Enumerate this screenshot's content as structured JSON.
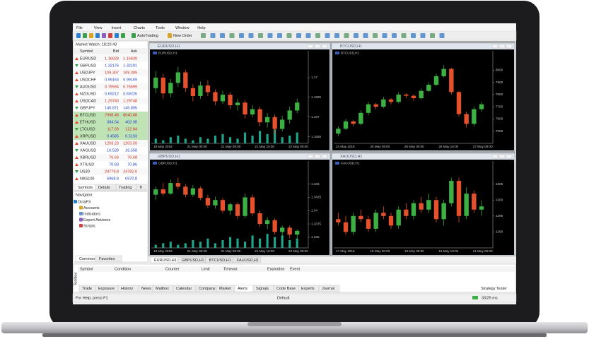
{
  "menu": [
    "File",
    "View",
    "Insert",
    "Charts",
    "Tools",
    "Window",
    "Help"
  ],
  "toolbar": {
    "autotrading": "AutoTrading",
    "new_order": "New Order"
  },
  "market_watch": {
    "title": "Market Watch: 18:20:43",
    "columns": [
      "Symbol",
      "Bid",
      "Ask"
    ],
    "rows": [
      [
        "EURUSD",
        "1.16628",
        "1.16639"
      ],
      [
        "GBPUSD",
        "1.32176",
        "1.32191"
      ],
      [
        "USDJPY",
        "109.307",
        "109.309"
      ],
      [
        "USDCHF",
        "0.99163",
        "0.99169"
      ],
      [
        "AUDUSD",
        "0.75594",
        "0.75599"
      ],
      [
        "NZDUSD",
        "0.69212",
        "0.69226"
      ],
      [
        "USDCAD",
        "1.29740",
        "1.29748"
      ],
      [
        "GBPJPY",
        "145.871",
        "145.895"
      ],
      [
        "BTCUSD",
        "7998.48",
        "8040.88"
      ],
      [
        "ETHUSD",
        "384.54",
        "402.98"
      ],
      [
        "LTCUSD",
        "117.69",
        "122.84"
      ],
      [
        "XRPUSD",
        "0.4585",
        "0.5193"
      ],
      [
        "XAUUSD",
        "1203.23",
        "1203.59"
      ],
      [
        "XAGUSD",
        "16.528",
        "16.558"
      ],
      [
        "XBRUSD",
        "76.66",
        "76.68"
      ],
      [
        "XTIUSD",
        "70.83",
        "70.86"
      ],
      [
        "US30",
        "24779.8",
        "24782.0"
      ],
      [
        "NAS100",
        "6968.8",
        "6970.8"
      ]
    ],
    "tabs": [
      "Symbols",
      "Details",
      "Trading",
      "Ti"
    ]
  },
  "navigator": {
    "title": "Navigator",
    "items": [
      "OctaFX",
      "Accounts",
      "Indicators",
      "Expert Advisors",
      "Scripts"
    ],
    "tabs": [
      "Common",
      "Favorites"
    ]
  },
  "charts": [
    {
      "title": "EURUSD,H1",
      "ylim": [
        1.165,
        1.1715
      ],
      "yticks": [
        1.1655,
        1.167,
        1.1685,
        1.17
      ],
      "xlabels": [
        "18 May 2018",
        "21 May 00:00",
        "21 May 08:00",
        "21 May 16:00",
        "22 May 00:00"
      ],
      "candles": [
        [
          1.1692,
          1.1705,
          1.1688,
          1.17
        ],
        [
          1.17,
          1.1703,
          1.1684,
          1.1688
        ],
        [
          1.1688,
          1.1699,
          1.1685,
          1.1696
        ],
        [
          1.1696,
          1.1708,
          1.1693,
          1.1704
        ],
        [
          1.1704,
          1.1706,
          1.1689,
          1.1692
        ],
        [
          1.1692,
          1.1695,
          1.1682,
          1.1686
        ],
        [
          1.1686,
          1.1697,
          1.1684,
          1.1694
        ],
        [
          1.1694,
          1.1698,
          1.1686,
          1.1689
        ],
        [
          1.1689,
          1.1691,
          1.1679,
          1.1682
        ],
        [
          1.1682,
          1.169,
          1.168,
          1.1687
        ],
        [
          1.1687,
          1.1689,
          1.1676,
          1.1679
        ],
        [
          1.1679,
          1.1684,
          1.1675,
          1.1681
        ],
        [
          1.1681,
          1.1683,
          1.1669,
          1.1672
        ],
        [
          1.1672,
          1.1679,
          1.167,
          1.1676
        ],
        [
          1.1676,
          1.1678,
          1.1663,
          1.1666
        ],
        [
          1.1666,
          1.1673,
          1.1662,
          1.167
        ],
        [
          1.167,
          1.1672,
          1.1657,
          1.1661
        ],
        [
          1.1661,
          1.1671,
          1.1659,
          1.1668
        ],
        [
          1.1668,
          1.1678,
          1.1665,
          1.1675
        ],
        [
          1.1675,
          1.1684,
          1.1673,
          1.1681
        ]
      ],
      "volumes": [
        3,
        2,
        4,
        5,
        3,
        2,
        4,
        3,
        5,
        6,
        4,
        3,
        7,
        5,
        8,
        6,
        9,
        4,
        5,
        7
      ],
      "volume_lim": [
        0,
        10
      ]
    },
    {
      "title": "BTCUSD,H1",
      "ylim": [
        7400,
        8100
      ],
      "yticks": [
        7500,
        7600,
        7700,
        7800,
        7900,
        8000
      ],
      "xlabels": [
        "24 May 2018",
        "25 May 08:00",
        "26 May 00:00",
        "26 May 16:00",
        "27 May 08:00"
      ],
      "candles": [
        [
          7480,
          7540,
          7460,
          7520
        ],
        [
          7520,
          7600,
          7510,
          7580
        ],
        [
          7580,
          7590,
          7540,
          7560
        ],
        [
          7560,
          7670,
          7550,
          7650
        ],
        [
          7650,
          7740,
          7630,
          7720
        ],
        [
          7720,
          7730,
          7680,
          7700
        ],
        [
          7700,
          7780,
          7690,
          7760
        ],
        [
          7760,
          7770,
          7720,
          7740
        ],
        [
          7740,
          7820,
          7730,
          7800
        ],
        [
          7800,
          7810,
          7770,
          7790
        ],
        [
          7790,
          7800,
          7750,
          7770
        ],
        [
          7770,
          7850,
          7760,
          7830
        ],
        [
          7830,
          7900,
          7820,
          7880
        ],
        [
          7880,
          7970,
          7870,
          7950
        ],
        [
          7950,
          8040,
          7940,
          8010
        ],
        [
          8010,
          8020,
          7800,
          7820
        ],
        [
          7820,
          7830,
          7620,
          7640
        ],
        [
          7640,
          7660,
          7530,
          7560
        ],
        [
          7560,
          7700,
          7540,
          7680
        ],
        [
          7680,
          7740,
          7660,
          7720
        ]
      ]
    },
    {
      "title": "GBPUSD,H1",
      "ylim": [
        1.333,
        1.348
      ],
      "yticks": [
        1.335,
        1.3375,
        1.34,
        1.3425,
        1.345
      ],
      "xlabels": [
        "18 May 2018",
        "21 May 00:00",
        "21 May 08:00",
        "21 May 16:00",
        "22 May 00:00"
      ],
      "candles": [
        [
          1.343,
          1.3445,
          1.342,
          1.344
        ],
        [
          1.344,
          1.3452,
          1.3428,
          1.3432
        ],
        [
          1.3432,
          1.3458,
          1.343,
          1.3452
        ],
        [
          1.3452,
          1.3462,
          1.344,
          1.3445
        ],
        [
          1.3445,
          1.345,
          1.3425,
          1.343
        ],
        [
          1.343,
          1.3448,
          1.3426,
          1.3442
        ],
        [
          1.3442,
          1.3446,
          1.342,
          1.3424
        ],
        [
          1.3424,
          1.343,
          1.3405,
          1.341
        ],
        [
          1.341,
          1.3426,
          1.3404,
          1.342
        ],
        [
          1.342,
          1.3424,
          1.3395,
          1.34
        ],
        [
          1.34,
          1.3415,
          1.3392,
          1.3412
        ],
        [
          1.3412,
          1.3416,
          1.3385,
          1.339
        ],
        [
          1.339,
          1.3432,
          1.3386,
          1.3425
        ],
        [
          1.3425,
          1.343,
          1.339,
          1.3395
        ],
        [
          1.3395,
          1.34,
          1.337,
          1.3375
        ],
        [
          1.3375,
          1.3388,
          1.3365,
          1.3382
        ],
        [
          1.3382,
          1.3386,
          1.3355,
          1.336
        ],
        [
          1.336,
          1.3372,
          1.335,
          1.3368
        ],
        [
          1.3368,
          1.3372,
          1.3348,
          1.3355
        ],
        [
          1.3355,
          1.3365,
          1.3345,
          1.3362
        ]
      ],
      "volumes": [
        2,
        3,
        4,
        2,
        3,
        5,
        4,
        6,
        3,
        5,
        7,
        6,
        4,
        8,
        6,
        9,
        7,
        8,
        5,
        6
      ],
      "volume_lim": [
        0,
        10
      ]
    },
    {
      "title": "XAUUSD,H1",
      "ylim": [
        1285,
        1310
      ],
      "yticks": [
        1290,
        1295,
        1300,
        1305
      ],
      "xlabels": [
        "17 May 2018",
        "18 May 00:00",
        "18 May 08:00",
        "18 May 16:00",
        "21 May 00:00"
      ],
      "candles": [
        [
          1294,
          1296,
          1292,
          1293
        ],
        [
          1293,
          1295,
          1289,
          1290
        ],
        [
          1290,
          1296,
          1289,
          1295
        ],
        [
          1295,
          1297,
          1293,
          1294
        ],
        [
          1294,
          1295,
          1290,
          1291
        ],
        [
          1291,
          1297,
          1290,
          1296
        ],
        [
          1296,
          1298,
          1294,
          1295
        ],
        [
          1295,
          1296,
          1291,
          1292
        ],
        [
          1292,
          1298,
          1291,
          1297
        ],
        [
          1297,
          1299,
          1294,
          1295
        ],
        [
          1295,
          1300,
          1294,
          1299
        ],
        [
          1299,
          1301,
          1296,
          1297
        ],
        [
          1297,
          1302,
          1296,
          1300
        ],
        [
          1300,
          1301,
          1293,
          1294
        ],
        [
          1294,
          1300,
          1292,
          1299
        ],
        [
          1299,
          1307,
          1298,
          1306
        ],
        [
          1306,
          1307,
          1293,
          1295
        ],
        [
          1295,
          1304,
          1294,
          1302
        ],
        [
          1302,
          1303,
          1296,
          1297
        ],
        [
          1297,
          1300,
          1295,
          1298
        ]
      ]
    }
  ],
  "chart_tabs": [
    "EURUSD,H1",
    "GBPUSD,H1",
    "BTCUSD,H1",
    "XAUUSD,H1"
  ],
  "terminal": {
    "side": "Toolbox",
    "columns": [
      "Symbol",
      "Condition",
      "Counter",
      "Limit",
      "Timeout",
      "Expiration",
      "Event"
    ],
    "tabs": [
      "Trade",
      "Exposure",
      "History",
      "News",
      "Mailbox",
      "Calendar",
      "Company",
      "Market",
      "Alerts",
      "Signals",
      "Code Base",
      "Experts",
      "Journal"
    ],
    "strategy": "Strategy Tester"
  },
  "status": {
    "help": "For Help, press F1",
    "profile": "Default",
    "ping": "33/25 ms"
  }
}
